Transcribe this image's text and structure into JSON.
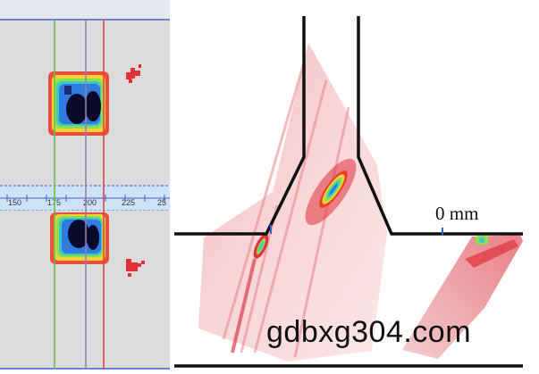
{
  "scan_view": {
    "scale_ticks": [
      "150",
      "175",
      "200",
      "225",
      "25"
    ]
  },
  "weld_view": {
    "depth_marker_label": "0 mm"
  },
  "watermark_text": "gdbxg304.com",
  "colors": {
    "panel_gray": "#dcdcdc",
    "ruler_blue": "#cfe3f7",
    "ruler_line": "#3a5fcd",
    "cursor_green": "#6cc04a",
    "cursor_purple": "#9a7ab0",
    "cursor_red": "#e8404a",
    "indication_red": "#e0303a",
    "weld_outline": "#111111"
  }
}
